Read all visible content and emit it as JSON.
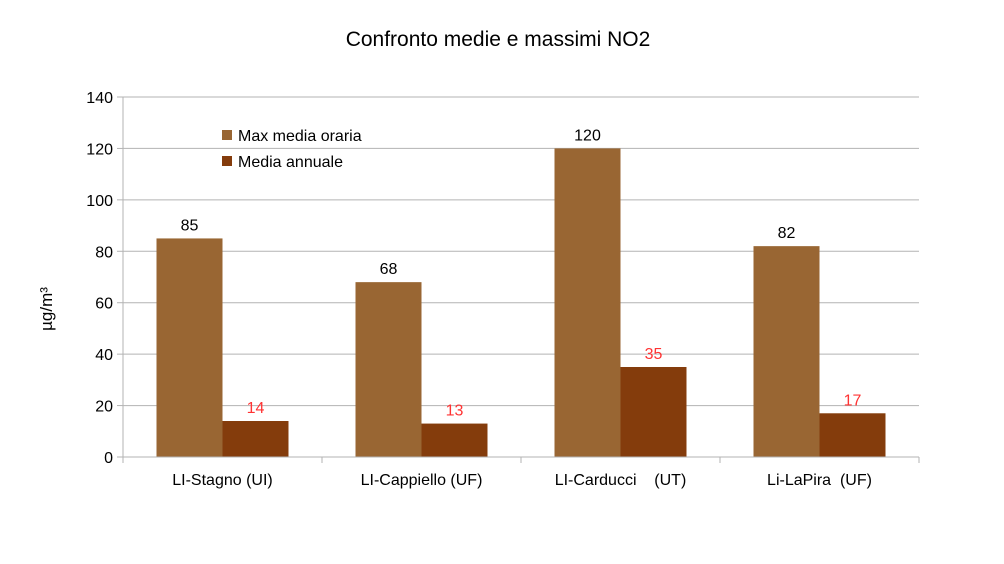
{
  "chart_data": {
    "type": "bar",
    "title": "Confronto medie e massimi NO2",
    "xlabel": "",
    "ylabel": "µg/m³",
    "ylim": [
      0,
      140
    ],
    "yticks": [
      0,
      20,
      40,
      60,
      80,
      100,
      120,
      140
    ],
    "grid": true,
    "legend_position": "top-left",
    "categories": [
      "LI-Stagno (UI)",
      "LI-Cappiello (UF)",
      "LI-Carducci    (UT)",
      "Li-LaPira  (UF)"
    ],
    "series": [
      {
        "name": "Max media oraria",
        "values": [
          85,
          68,
          120,
          82
        ],
        "color": "#996633",
        "label_color": "#000000"
      },
      {
        "name": "Media annuale",
        "values": [
          14,
          13,
          35,
          17
        ],
        "color": "#843c0c",
        "label_color": "#ff3333"
      }
    ]
  }
}
